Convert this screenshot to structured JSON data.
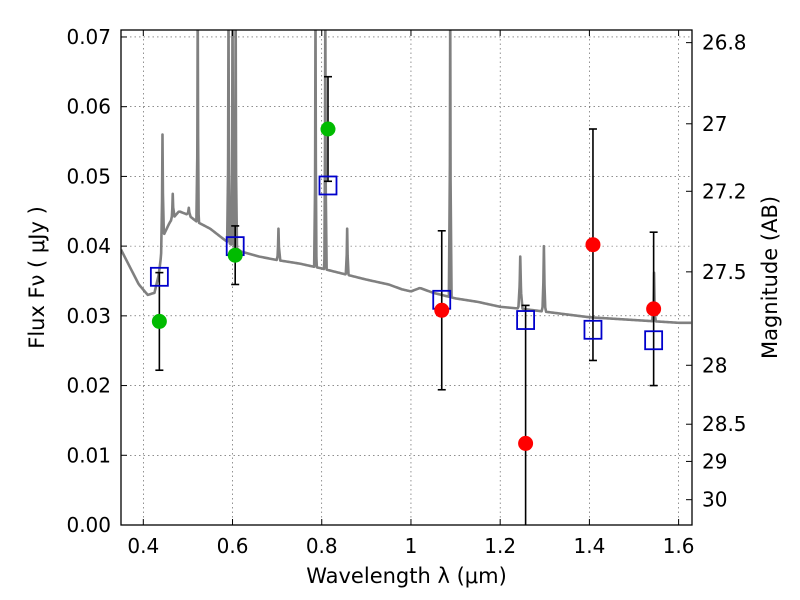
{
  "chart_data": {
    "type": "scatter",
    "xlabel": "Wavelength  λ (μm)",
    "ylabel_left": "Flux  Fν  ( μJy )",
    "ylabel_right": "Magnitude (AB)",
    "xlim": [
      0.35,
      1.63
    ],
    "ylim": [
      0.0,
      0.071
    ],
    "grid": true,
    "x_ticks": [
      {
        "value": 0.4,
        "label": "0.4"
      },
      {
        "value": 0.6,
        "label": "0.6"
      },
      {
        "value": 0.8,
        "label": "0.8"
      },
      {
        "value": 1.0,
        "label": "1"
      },
      {
        "value": 1.2,
        "label": "1.2"
      },
      {
        "value": 1.4,
        "label": "1.4"
      },
      {
        "value": 1.6,
        "label": "1.6"
      }
    ],
    "y_ticks": [
      {
        "value": 0.0,
        "label": "0.00"
      },
      {
        "value": 0.01,
        "label": "0.01"
      },
      {
        "value": 0.02,
        "label": "0.02"
      },
      {
        "value": 0.03,
        "label": "0.03"
      },
      {
        "value": 0.04,
        "label": "0.04"
      },
      {
        "value": 0.05,
        "label": "0.05"
      },
      {
        "value": 0.06,
        "label": "0.06"
      },
      {
        "value": 0.07,
        "label": "0.07"
      }
    ],
    "right_ticks": [
      {
        "mag": 26.8,
        "label": "26.8"
      },
      {
        "mag": 27.0,
        "label": "27"
      },
      {
        "mag": 27.2,
        "label": "27.2"
      },
      {
        "mag": 27.5,
        "label": "27.5"
      },
      {
        "mag": 28.0,
        "label": "28"
      },
      {
        "mag": 28.5,
        "label": "28.5"
      },
      {
        "mag": 29.0,
        "label": "29"
      },
      {
        "mag": 30.0,
        "label": "30"
      }
    ],
    "sed_color": "#808080",
    "sed_continuum": [
      [
        0.35,
        0.0395
      ],
      [
        0.37,
        0.037
      ],
      [
        0.39,
        0.0345
      ],
      [
        0.41,
        0.033
      ],
      [
        0.425,
        0.0333
      ],
      [
        0.435,
        0.036
      ],
      [
        0.445,
        0.0415
      ],
      [
        0.46,
        0.0435
      ],
      [
        0.48,
        0.045
      ],
      [
        0.5,
        0.0445
      ],
      [
        0.52,
        0.0435
      ],
      [
        0.55,
        0.0425
      ],
      [
        0.58,
        0.041
      ],
      [
        0.62,
        0.0392
      ],
      [
        0.66,
        0.0385
      ],
      [
        0.7,
        0.038
      ],
      [
        0.75,
        0.0375
      ],
      [
        0.8,
        0.0368
      ],
      [
        0.85,
        0.036
      ],
      [
        0.9,
        0.0352
      ],
      [
        0.95,
        0.0345
      ],
      [
        0.98,
        0.0338
      ],
      [
        1.0,
        0.0335
      ],
      [
        1.02,
        0.034
      ],
      [
        1.05,
        0.0333
      ],
      [
        1.1,
        0.0325
      ],
      [
        1.15,
        0.032
      ],
      [
        1.2,
        0.0313
      ],
      [
        1.25,
        0.031
      ],
      [
        1.3,
        0.0306
      ],
      [
        1.35,
        0.0302
      ],
      [
        1.4,
        0.0298
      ],
      [
        1.45,
        0.0296
      ],
      [
        1.5,
        0.0294
      ],
      [
        1.55,
        0.0292
      ],
      [
        1.6,
        0.029
      ],
      [
        1.63,
        0.029
      ]
    ],
    "sed_lines": [
      {
        "x": 0.443,
        "peak": 0.056,
        "w": 0.004
      },
      {
        "x": 0.466,
        "peak": 0.0475,
        "w": 0.004
      },
      {
        "x": 0.502,
        "peak": 0.0455,
        "w": 0.005
      },
      {
        "x": 0.522,
        "peak": 0.075,
        "w": 0.003
      },
      {
        "x": 0.591,
        "peak": 0.075,
        "w": 0.003
      },
      {
        "x": 0.6,
        "peak": 0.075,
        "w": 0.003
      },
      {
        "x": 0.607,
        "peak": 0.075,
        "w": 0.003
      },
      {
        "x": 0.703,
        "peak": 0.0425,
        "w": 0.004
      },
      {
        "x": 0.786,
        "peak": 0.075,
        "w": 0.003
      },
      {
        "x": 0.808,
        "peak": 0.075,
        "w": 0.003
      },
      {
        "x": 0.857,
        "peak": 0.0425,
        "w": 0.004
      },
      {
        "x": 1.088,
        "peak": 0.075,
        "w": 0.003
      },
      {
        "x": 1.245,
        "peak": 0.0385,
        "w": 0.006
      },
      {
        "x": 1.298,
        "peak": 0.04,
        "w": 0.005
      },
      {
        "x": 1.545,
        "peak": 0.0362,
        "w": 0.004
      }
    ],
    "model_points": {
      "marker": "open-square",
      "color": "#0000cc",
      "points": [
        {
          "x": 0.436,
          "y": 0.0356
        },
        {
          "x": 0.606,
          "y": 0.04
        },
        {
          "x": 0.814,
          "y": 0.0487
        },
        {
          "x": 1.069,
          "y": 0.0323
        },
        {
          "x": 1.257,
          "y": 0.0294
        },
        {
          "x": 1.408,
          "y": 0.028
        },
        {
          "x": 1.544,
          "y": 0.0265
        }
      ]
    },
    "detections": {
      "marker": "filled-circle",
      "color": "#00bb00",
      "points": [
        {
          "x": 0.436,
          "y": 0.0292,
          "err": 0.007
        },
        {
          "x": 0.606,
          "y": 0.0387,
          "err": 0.0042
        },
        {
          "x": 0.814,
          "y": 0.0568,
          "err": 0.0075
        }
      ]
    },
    "non_detections": {
      "marker": "filled-circle",
      "color": "#ff0000",
      "points": [
        {
          "x": 1.069,
          "y": 0.0308,
          "err": 0.0114
        },
        {
          "x": 1.257,
          "y": 0.0117,
          "err": 0.0198
        },
        {
          "x": 1.408,
          "y": 0.0402,
          "err": 0.0166
        },
        {
          "x": 1.544,
          "y": 0.031,
          "err": 0.011
        }
      ]
    }
  }
}
